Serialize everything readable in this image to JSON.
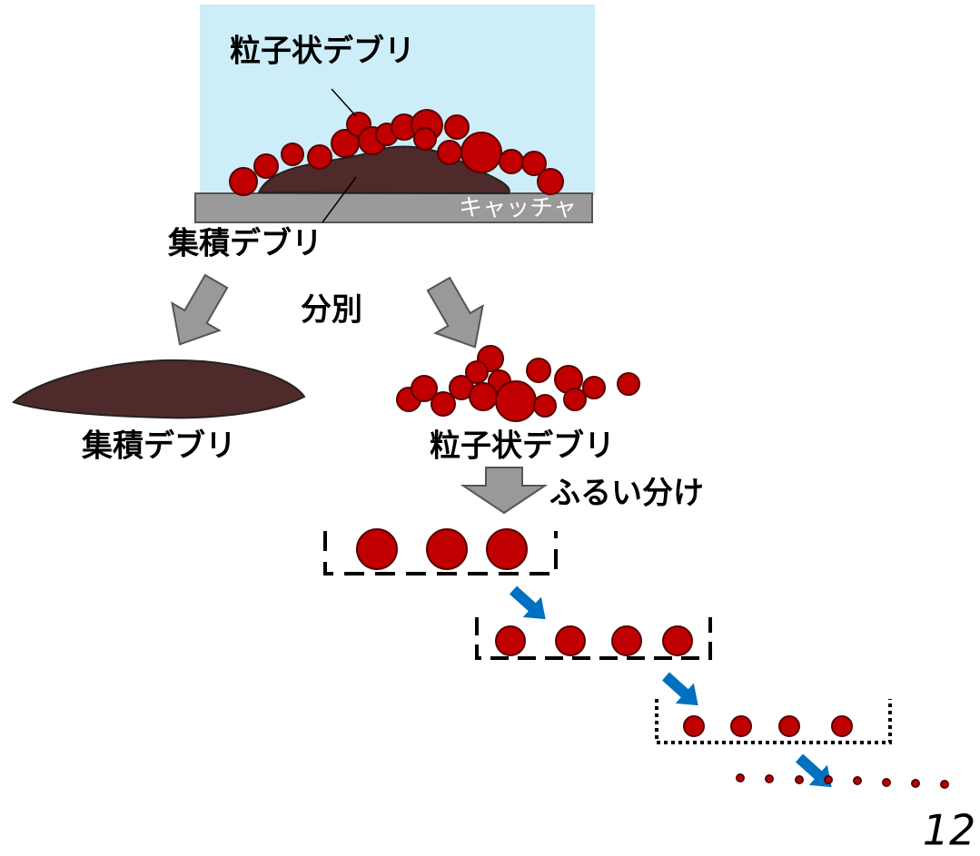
{
  "top": {
    "particle_label": "粒子状デブリ",
    "catcher_label": "キャッチャ",
    "cake_label": "集積デブリ"
  },
  "sort_label": "分別",
  "left": {
    "label": "集積デブリ"
  },
  "right": {
    "label": "粒子状デブリ"
  },
  "sieve_label": "ふるい分け",
  "page_number": "12"
}
